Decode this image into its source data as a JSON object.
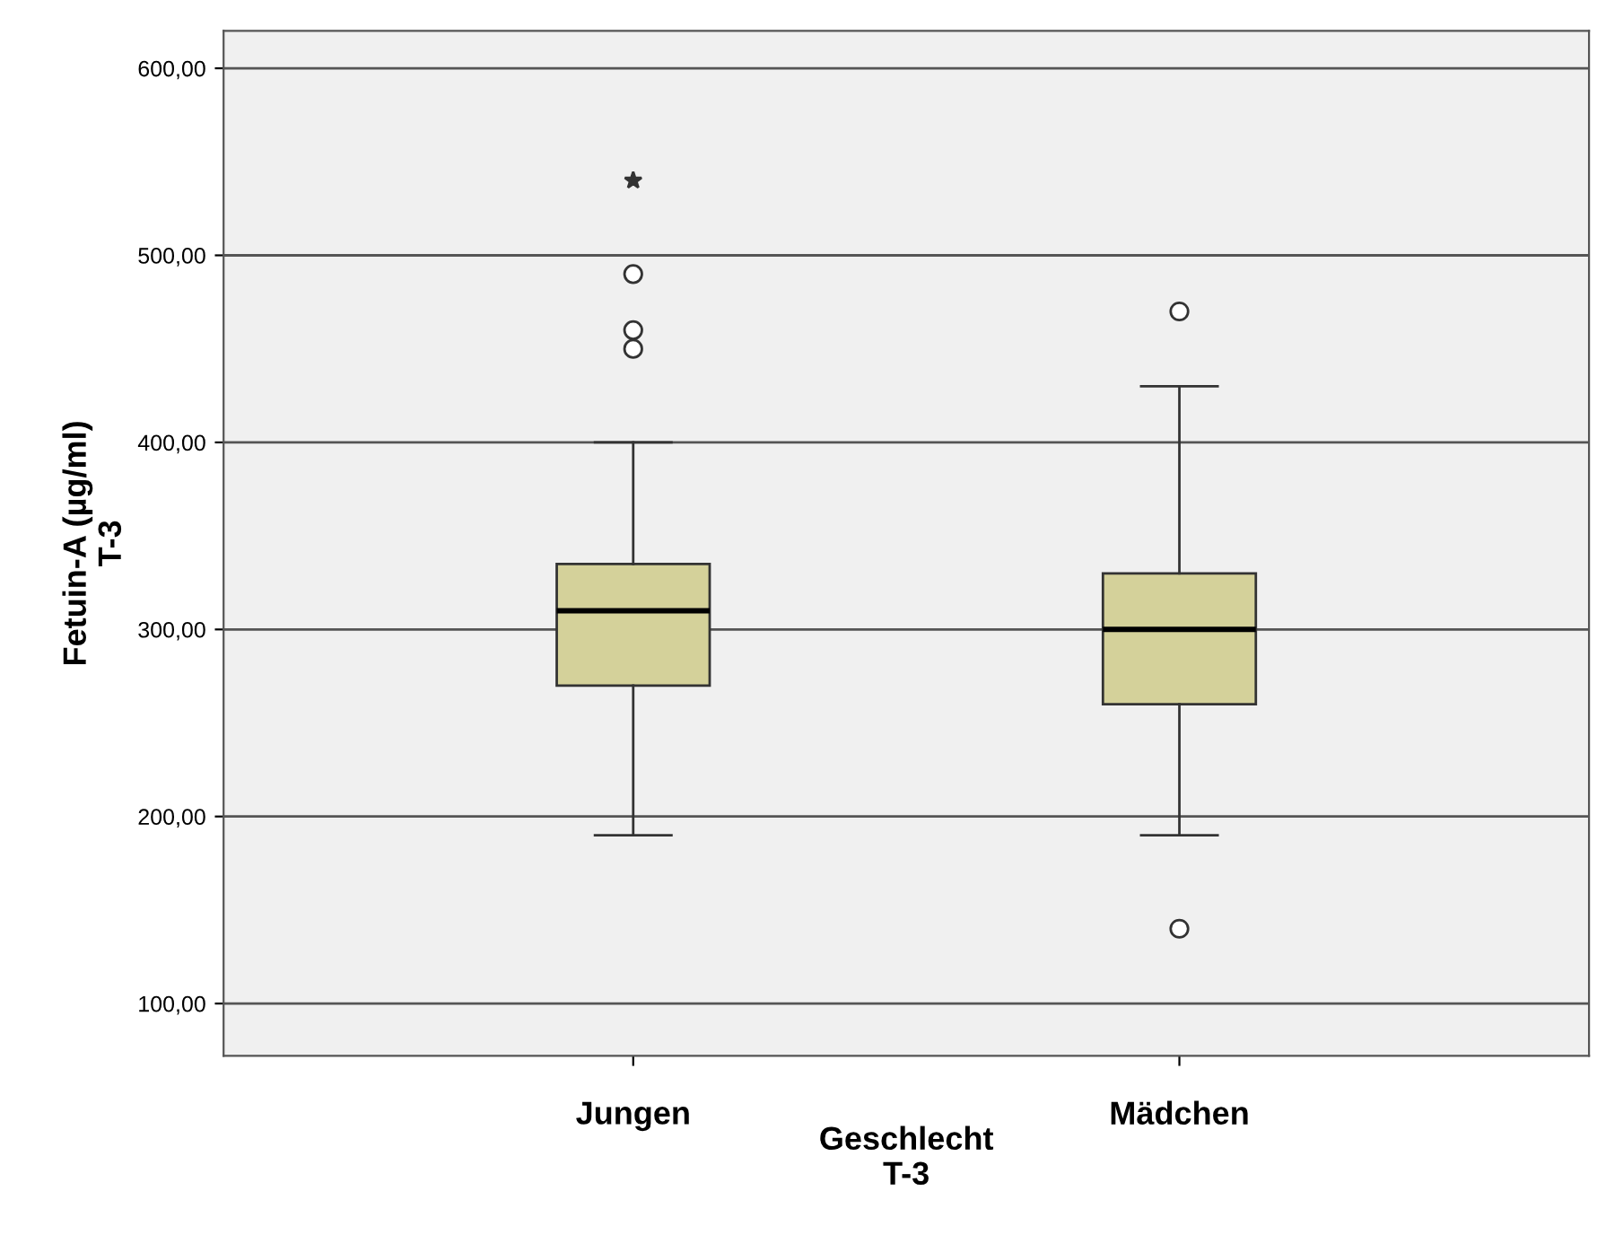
{
  "chart_data": {
    "type": "box",
    "xlabel": "Geschlecht\nT-3",
    "ylabel": "Fetuin-A (µg/ml)\nT-3",
    "categories": [
      "Jungen",
      "Mädchen"
    ],
    "boxes": [
      {
        "low": 190,
        "q1": 270,
        "median": 310,
        "q3": 335,
        "high": 400,
        "outliers": [
          450,
          460,
          490,
          540
        ]
      },
      {
        "low": 190,
        "q1": 260,
        "median": 300,
        "q3": 330,
        "high": 430,
        "outliers": [
          140,
          470
        ]
      }
    ],
    "color": "#d4d19a",
    "ylim": [
      72,
      620
    ],
    "yticks": [
      {
        "value": 100,
        "label": "100,00"
      },
      {
        "value": 200,
        "label": "200,00"
      },
      {
        "value": 300,
        "label": "300,00"
      },
      {
        "value": 400,
        "label": "400,00"
      },
      {
        "value": 500,
        "label": "500,00"
      },
      {
        "value": 600,
        "label": "600,00"
      }
    ],
    "grid": "y"
  }
}
